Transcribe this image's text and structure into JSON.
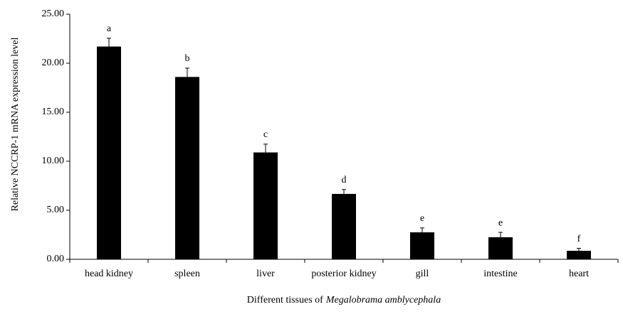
{
  "chart_data": {
    "type": "bar",
    "y_label": "Relative  NCCRP-1 mRNA expression level",
    "x_label": {
      "text": "Different tissues of",
      "species": "Megalobrama amblycephala"
    },
    "categories": [
      "head kidney",
      "spleen",
      "liver",
      "posterior kidney",
      "gill",
      "intestine",
      "heart"
    ],
    "values": [
      21.7,
      18.6,
      10.9,
      6.67,
      2.75,
      2.25,
      0.87
    ],
    "errors": [
      0.85,
      0.9,
      0.85,
      0.45,
      0.45,
      0.5,
      0.25
    ],
    "annotations": [
      "a",
      "b",
      "c",
      "d",
      "e",
      "e",
      "f"
    ],
    "color": "#000000",
    "ylim": [
      0,
      25
    ],
    "yticks": [
      {
        "value": 0,
        "label": "0.00"
      },
      {
        "value": 5,
        "label": "5.00"
      },
      {
        "value": 10,
        "label": "10.00"
      },
      {
        "value": 15,
        "label": "15.00"
      },
      {
        "value": 20,
        "label": "20.00"
      },
      {
        "value": 25,
        "label": "25.00"
      }
    ],
    "grid": false
  }
}
